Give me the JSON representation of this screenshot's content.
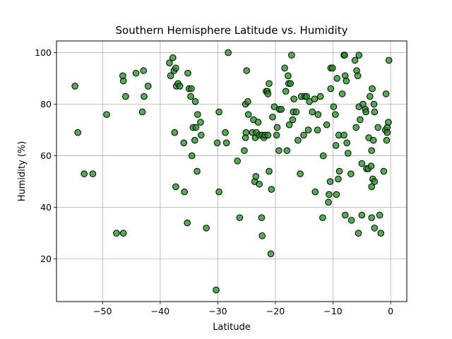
{
  "chart_data": {
    "type": "scatter",
    "title": "Southern Hemisphere Latitude vs. Humidity",
    "xlabel": "Latitude",
    "ylabel": "Humidity (%)",
    "xlim": [
      -58,
      2.8
    ],
    "ylim": [
      3.5,
      104.5
    ],
    "xticks": [
      -50,
      -40,
      -30,
      -20,
      -10,
      0
    ],
    "xtick_labels": [
      "−50",
      "−40",
      "−30",
      "−20",
      "−10",
      "0"
    ],
    "yticks": [
      20,
      40,
      60,
      80,
      100
    ],
    "ytick_labels": [
      "20",
      "40",
      "60",
      "80",
      "100"
    ],
    "grid": true,
    "marker_color": "#228b22",
    "marker_edge_color": "#000000",
    "points": [
      [
        -54.8,
        87
      ],
      [
        -54.3,
        69
      ],
      [
        -53.2,
        53
      ],
      [
        -51.7,
        53
      ],
      [
        -49.3,
        76
      ],
      [
        -47.6,
        30
      ],
      [
        -46.5,
        91
      ],
      [
        -46.4,
        89
      ],
      [
        -46.4,
        30
      ],
      [
        -46.0,
        83
      ],
      [
        -44.2,
        92
      ],
      [
        -43.1,
        77
      ],
      [
        -42.9,
        93
      ],
      [
        -42.8,
        83
      ],
      [
        -42.1,
        87
      ],
      [
        -38.4,
        96
      ],
      [
        -38.2,
        91
      ],
      [
        -37.8,
        98
      ],
      [
        -37.6,
        93
      ],
      [
        -37.5,
        69
      ],
      [
        -37.3,
        94
      ],
      [
        -37.3,
        48
      ],
      [
        -37.2,
        87
      ],
      [
        -36.9,
        88
      ],
      [
        -36.6,
        87
      ],
      [
        -35.9,
        65
      ],
      [
        -35.8,
        46
      ],
      [
        -35.3,
        34
      ],
      [
        -35.2,
        92
      ],
      [
        -35.0,
        86
      ],
      [
        -34.7,
        83
      ],
      [
        -34.6,
        86
      ],
      [
        -34.5,
        60
      ],
      [
        -34.3,
        71
      ],
      [
        -34.0,
        66
      ],
      [
        -33.9,
        81
      ],
      [
        -33.8,
        71
      ],
      [
        -33.6,
        54
      ],
      [
        -33.5,
        76
      ],
      [
        -33.0,
        73
      ],
      [
        -32.9,
        68
      ],
      [
        -32.0,
        32
      ],
      [
        -30.3,
        8
      ],
      [
        -30.1,
        65
      ],
      [
        -29.8,
        77
      ],
      [
        -29.8,
        46
      ],
      [
        -28.7,
        69
      ],
      [
        -28.5,
        65
      ],
      [
        -28.2,
        100
      ],
      [
        -26.6,
        58
      ],
      [
        -26.2,
        36
      ],
      [
        -25.4,
        62
      ],
      [
        -25.2,
        80
      ],
      [
        -25.2,
        67
      ],
      [
        -25.1,
        69
      ],
      [
        -25.0,
        93
      ],
      [
        -24.8,
        81
      ],
      [
        -24.7,
        76
      ],
      [
        -24.0,
        69
      ],
      [
        -23.8,
        74
      ],
      [
        -23.6,
        50
      ],
      [
        -23.5,
        67
      ],
      [
        -23.4,
        52
      ],
      [
        -23.3,
        69
      ],
      [
        -23.0,
        73
      ],
      [
        -22.8,
        68
      ],
      [
        -22.8,
        49
      ],
      [
        -22.4,
        36
      ],
      [
        -22.3,
        68
      ],
      [
        -22.3,
        29
      ],
      [
        -22.0,
        67
      ],
      [
        -21.8,
        68
      ],
      [
        -21.6,
        85
      ],
      [
        -21.4,
        85
      ],
      [
        -21.3,
        68
      ],
      [
        -21.3,
        84
      ],
      [
        -21.1,
        54
      ],
      [
        -21.1,
        88
      ],
      [
        -20.8,
        22
      ],
      [
        -20.7,
        47
      ],
      [
        -20.5,
        75
      ],
      [
        -20.2,
        79
      ],
      [
        -19.8,
        68
      ],
      [
        -19.7,
        71
      ],
      [
        -19.4,
        62
      ],
      [
        -19.3,
        78
      ],
      [
        -19.0,
        78
      ],
      [
        -18.4,
        94
      ],
      [
        -18.2,
        85
      ],
      [
        -18.0,
        62
      ],
      [
        -17.8,
        91
      ],
      [
        -17.7,
        88
      ],
      [
        -17.6,
        72
      ],
      [
        -17.4,
        88
      ],
      [
        -17.2,
        99
      ],
      [
        -17.0,
        74
      ],
      [
        -16.9,
        77
      ],
      [
        -16.8,
        82
      ],
      [
        -16.4,
        77
      ],
      [
        -16.1,
        66
      ],
      [
        -15.7,
        53
      ],
      [
        -15.5,
        83
      ],
      [
        -15.1,
        68
      ],
      [
        -14.9,
        83
      ],
      [
        -14.6,
        83
      ],
      [
        -14.3,
        70
      ],
      [
        -14.1,
        81
      ],
      [
        -13.6,
        77
      ],
      [
        -13.2,
        82
      ],
      [
        -13.1,
        46
      ],
      [
        -12.7,
        70
      ],
      [
        -12.6,
        76
      ],
      [
        -12.2,
        83
      ],
      [
        -11.8,
        36
      ],
      [
        -11.7,
        60
      ],
      [
        -11.1,
        72
      ],
      [
        -10.8,
        42
      ],
      [
        -10.7,
        45
      ],
      [
        -10.5,
        50
      ],
      [
        -10.4,
        86
      ],
      [
        -10.4,
        94
      ],
      [
        -10.1,
        94
      ],
      [
        -9.9,
        79
      ],
      [
        -9.6,
        76
      ],
      [
        -9.5,
        64
      ],
      [
        -9.4,
        45
      ],
      [
        -9.3,
        90
      ],
      [
        -9.1,
        51
      ],
      [
        -9.0,
        68
      ],
      [
        -8.9,
        54
      ],
      [
        -8.4,
        84
      ],
      [
        -8.1,
        68
      ],
      [
        -8.1,
        99
      ],
      [
        -8.0,
        99
      ],
      [
        -7.9,
        91
      ],
      [
        -7.9,
        37
      ],
      [
        -7.7,
        89
      ],
      [
        -7.6,
        65
      ],
      [
        -7.4,
        61
      ],
      [
        -6.9,
        53
      ],
      [
        -6.8,
        35
      ],
      [
        -6.2,
        97
      ],
      [
        -6.0,
        71
      ],
      [
        -5.9,
        93
      ],
      [
        -5.7,
        91
      ],
      [
        -5.6,
        30
      ],
      [
        -5.5,
        79
      ],
      [
        -5.5,
        99
      ],
      [
        -5.3,
        74
      ],
      [
        -5.0,
        57
      ],
      [
        -5.0,
        37
      ],
      [
        -4.8,
        80
      ],
      [
        -4.4,
        78
      ],
      [
        -4.3,
        77
      ],
      [
        -4.2,
        55
      ],
      [
        -3.9,
        55
      ],
      [
        -3.8,
        67
      ],
      [
        -3.6,
        83
      ],
      [
        -3.4,
        56
      ],
      [
        -3.3,
        62
      ],
      [
        -3.3,
        48
      ],
      [
        -3.3,
        36
      ],
      [
        -3.2,
        86
      ],
      [
        -3.1,
        51
      ],
      [
        -3.0,
        66
      ],
      [
        -2.9,
        80
      ],
      [
        -2.8,
        77
      ],
      [
        -2.8,
        32
      ],
      [
        -2.8,
        50
      ],
      [
        -2.2,
        71
      ],
      [
        -1.9,
        37
      ],
      [
        -1.7,
        30
      ],
      [
        -1.2,
        54
      ],
      [
        -0.9,
        70
      ],
      [
        -0.8,
        84
      ],
      [
        -0.7,
        66
      ],
      [
        -0.6,
        71
      ],
      [
        -0.6,
        69
      ],
      [
        -0.4,
        73
      ],
      [
        -0.3,
        97
      ]
    ]
  }
}
